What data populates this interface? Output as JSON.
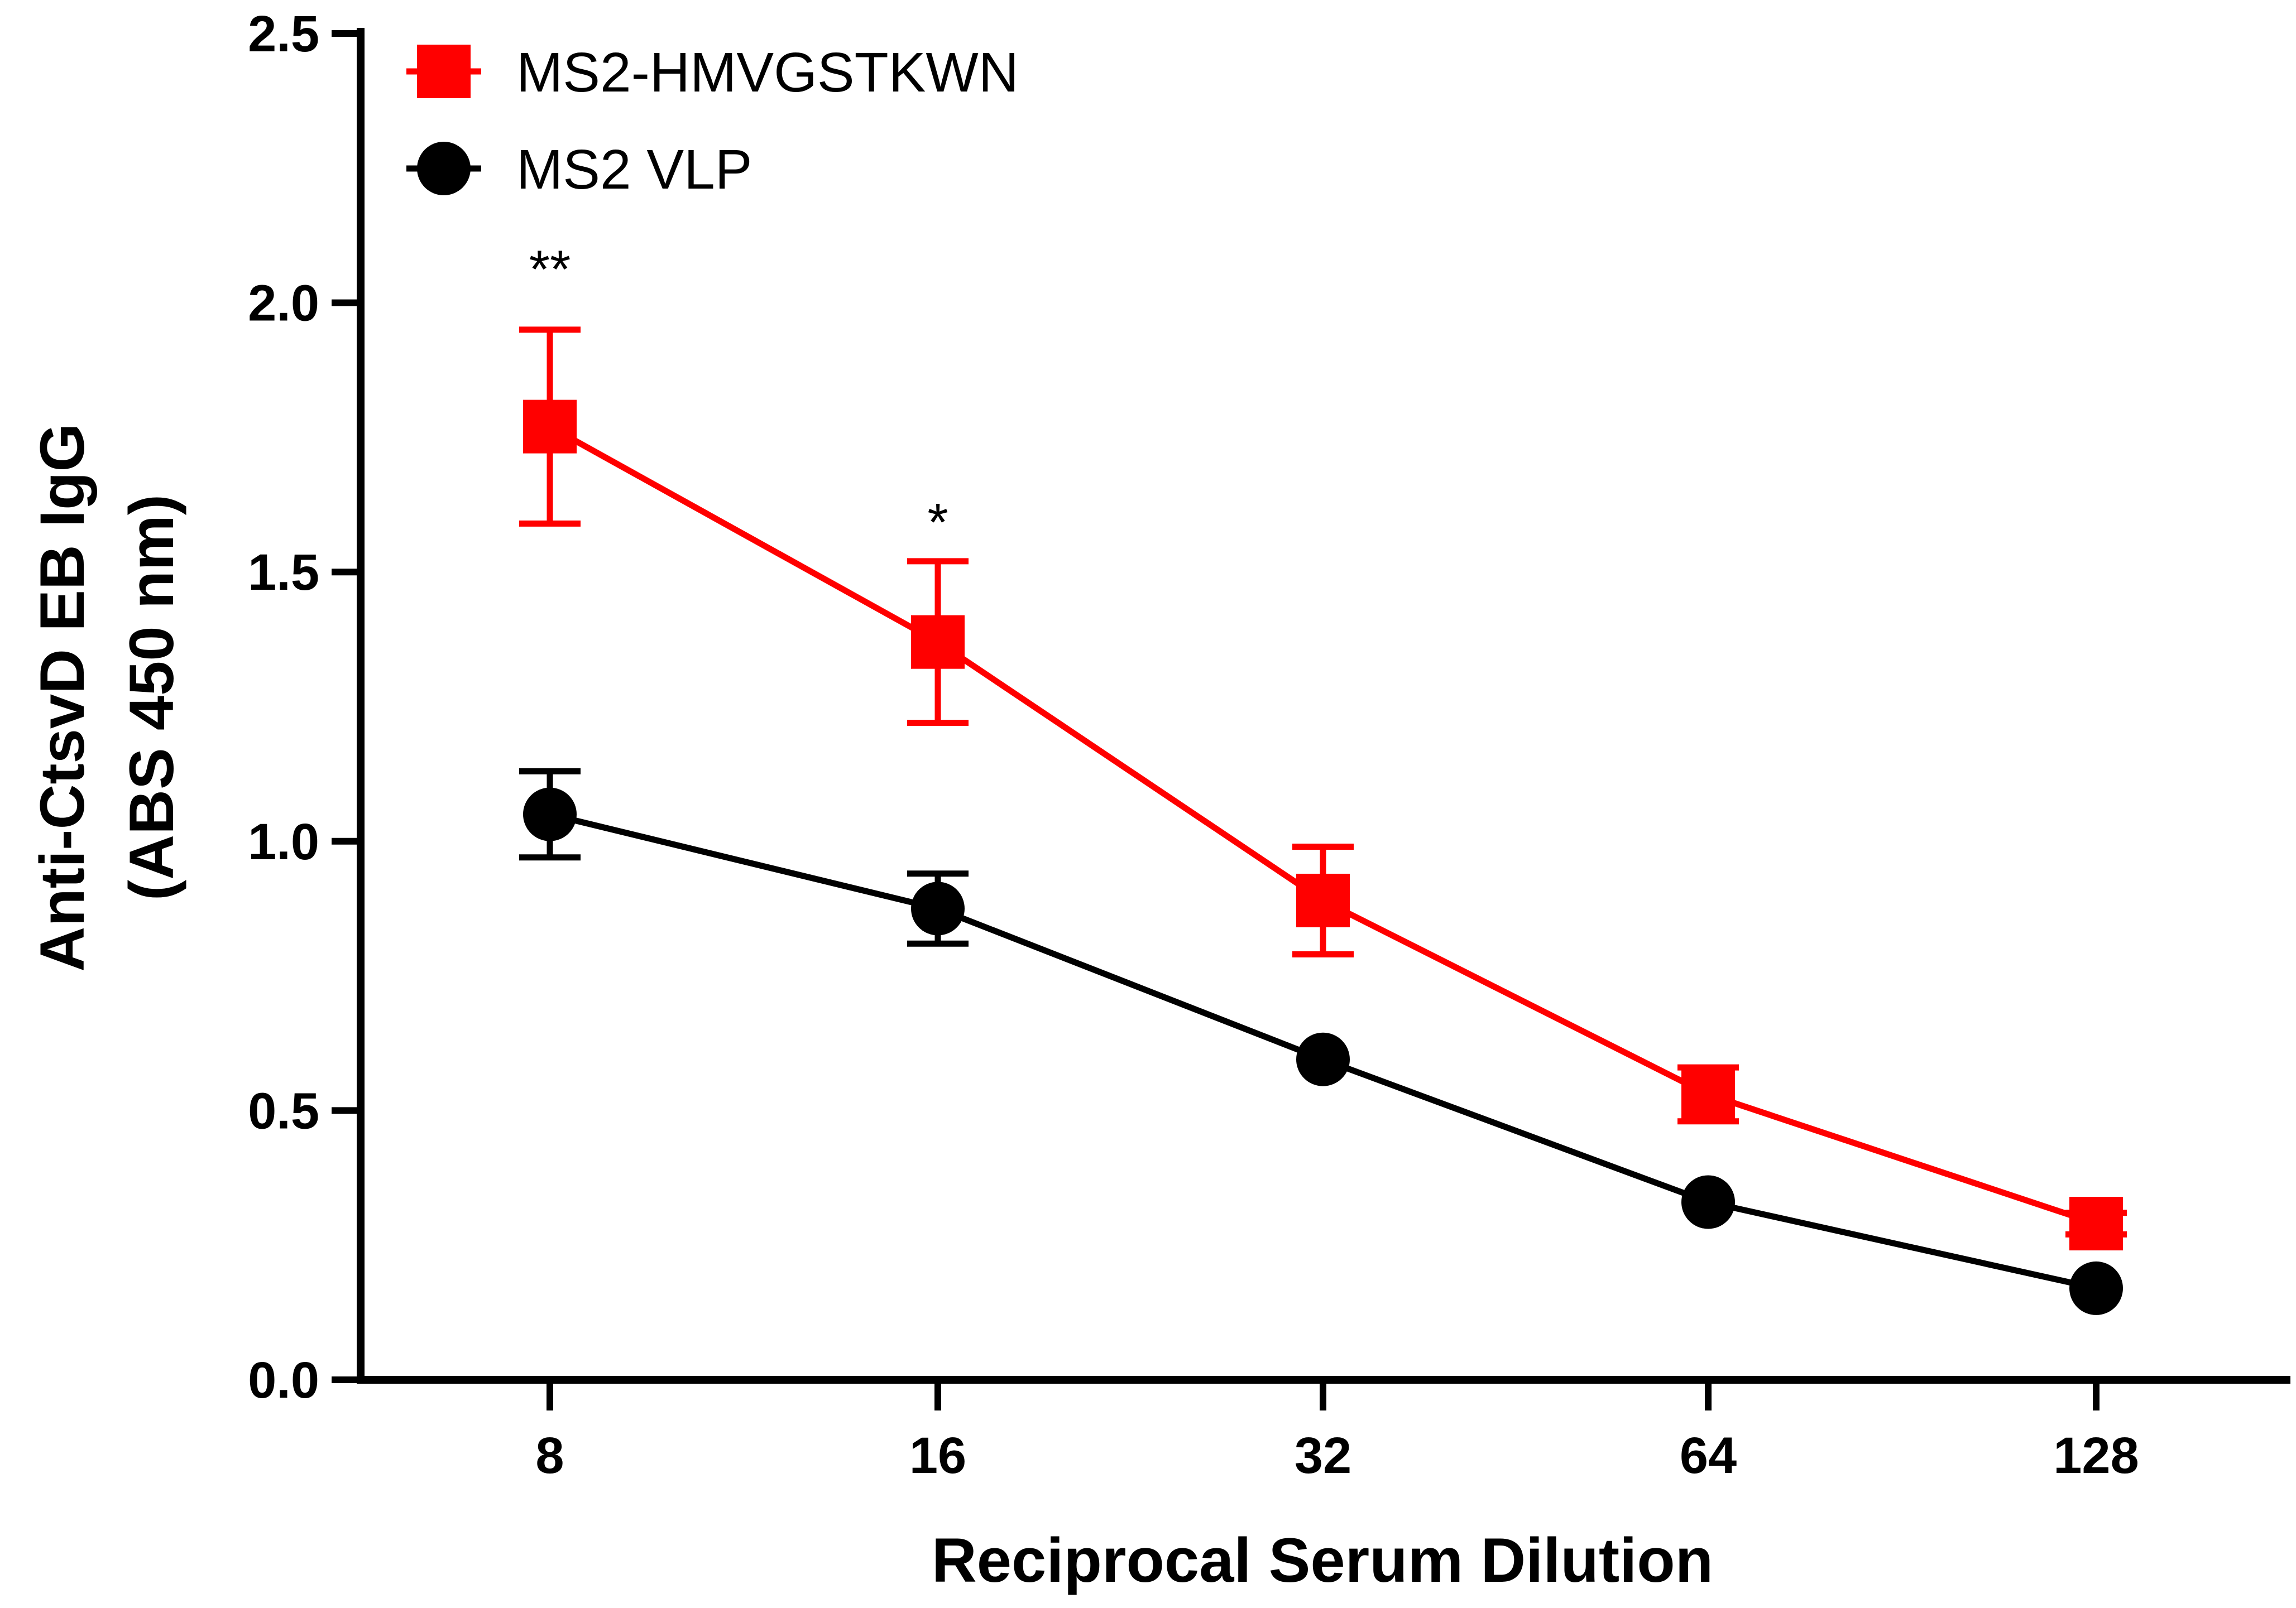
{
  "chart_data": {
    "type": "line",
    "title": "",
    "xlabel": "Reciprocal Serum Dilution",
    "ylabel_line1": "Anti-CtsvD EB IgG",
    "ylabel_line2": "(ABS 450 nm)",
    "categories": [
      "8",
      "16",
      "32",
      "64",
      "128"
    ],
    "ylim": [
      0,
      2.5
    ],
    "yticks": [
      "0.0",
      "0.5",
      "1.0",
      "1.5",
      "2.0",
      "2.5"
    ],
    "grid": false,
    "legend_position": "top-left",
    "series": [
      {
        "name": "MS2-HMVGSTKWN",
        "color": "#ff0000",
        "marker": "square",
        "values": [
          1.77,
          1.37,
          0.89,
          0.53,
          0.29
        ],
        "error": [
          0.18,
          0.15,
          0.1,
          0.05,
          0.02
        ]
      },
      {
        "name": "MS2 VLP",
        "color": "#000000",
        "marker": "circle",
        "values": [
          1.05,
          0.875,
          0.595,
          0.33,
          0.17
        ],
        "error": [
          0.08,
          0.065,
          0.0,
          0.0,
          0.0
        ]
      }
    ],
    "annotations": [
      {
        "text": "**",
        "category_index": 0,
        "value": 2.08
      },
      {
        "text": "*",
        "category_index": 1,
        "value": 1.61
      }
    ]
  }
}
